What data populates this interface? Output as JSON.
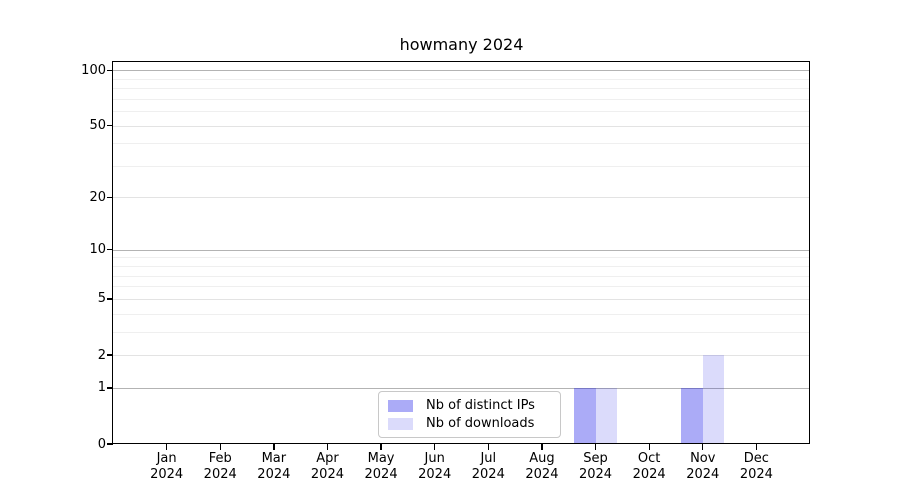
{
  "chart_data": {
    "type": "bar",
    "title": "howmany 2024",
    "categories": [
      "Jan 2024",
      "Feb 2024",
      "Mar 2024",
      "Apr 2024",
      "May 2024",
      "Jun 2024",
      "Jul 2024",
      "Aug 2024",
      "Sep 2024",
      "Oct 2024",
      "Nov 2024",
      "Dec 2024"
    ],
    "series": [
      {
        "name": "Nb of distinct IPs",
        "color": "rgba(0,0,230,0.33)",
        "values": [
          0,
          0,
          0,
          0,
          0,
          0,
          0,
          0,
          1,
          0,
          1,
          0
        ]
      },
      {
        "name": "Nb of downloads",
        "color": "rgba(0,0,230,0.14)",
        "values": [
          0,
          0,
          0,
          0,
          0,
          0,
          0,
          0,
          1,
          0,
          2,
          0
        ]
      }
    ],
    "y_scale": "log1p",
    "ylim": [
      0,
      110.7
    ],
    "y_major_ticks": [
      100,
      50,
      20,
      10,
      5,
      2,
      1,
      0
    ],
    "y_minor_ticks": [
      3,
      4,
      6,
      7,
      8,
      9,
      30,
      40,
      60,
      70,
      80,
      90
    ],
    "decade_ticks": [
      1,
      10,
      100
    ],
    "grid": true,
    "legend_position": "lower center",
    "colors": {
      "grid_minor": "#efefef",
      "grid_major": "#e3e3e3",
      "grid_decade": "#b3b3b3",
      "spine": "#000000",
      "text": "#000000",
      "background": "#ffffff"
    }
  }
}
